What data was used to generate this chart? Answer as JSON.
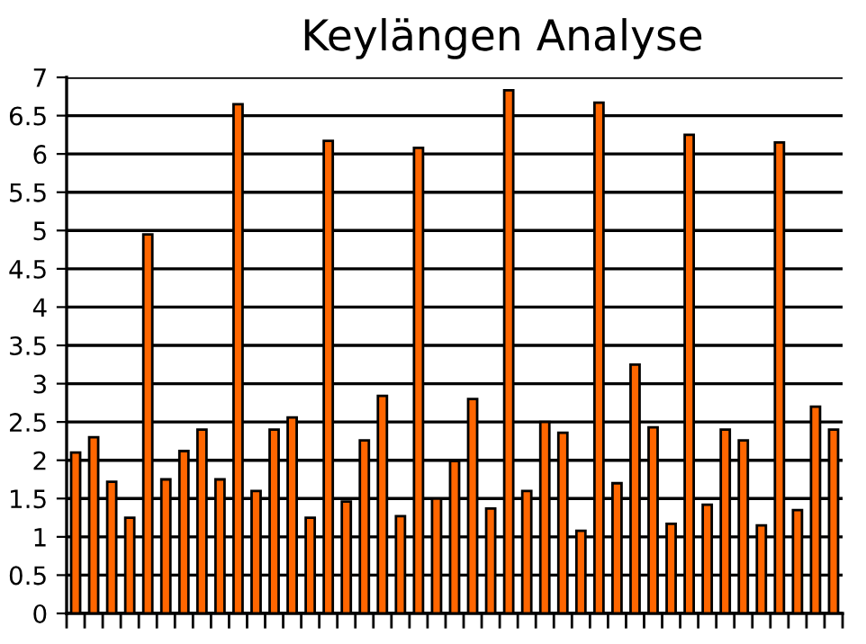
{
  "chart_data": {
    "type": "bar",
    "title": "Keylängen Analyse",
    "categories": [
      null,
      null,
      null,
      null,
      null,
      null,
      null,
      null,
      null,
      null,
      null,
      null,
      null,
      null,
      null,
      null,
      null,
      null,
      null,
      null,
      null,
      null,
      null,
      null,
      null,
      null,
      null,
      null,
      null,
      null,
      null,
      null,
      null,
      null,
      null,
      null,
      null,
      null,
      null,
      null,
      null,
      null,
      null
    ],
    "values": [
      2.1,
      2.3,
      1.72,
      1.25,
      4.95,
      1.75,
      2.12,
      2.4,
      1.75,
      6.65,
      1.6,
      2.4,
      2.56,
      1.25,
      6.17,
      1.46,
      2.26,
      2.84,
      1.27,
      6.08,
      1.5,
      1.99,
      2.8,
      1.37,
      6.83,
      1.6,
      2.5,
      2.36,
      1.08,
      6.67,
      1.7,
      3.25,
      2.43,
      1.17,
      6.25,
      1.42,
      2.4,
      2.26,
      1.15,
      6.15,
      1.35,
      2.7,
      2.4
    ],
    "color": "#ff6600",
    "ylim": [
      0,
      7
    ],
    "yticks": [
      0,
      0.5,
      1,
      1.5,
      2,
      2.5,
      3,
      3.5,
      4,
      4.5,
      5,
      5.5,
      6,
      6.5,
      7
    ],
    "grid": "y",
    "tick_labels": "y"
  }
}
